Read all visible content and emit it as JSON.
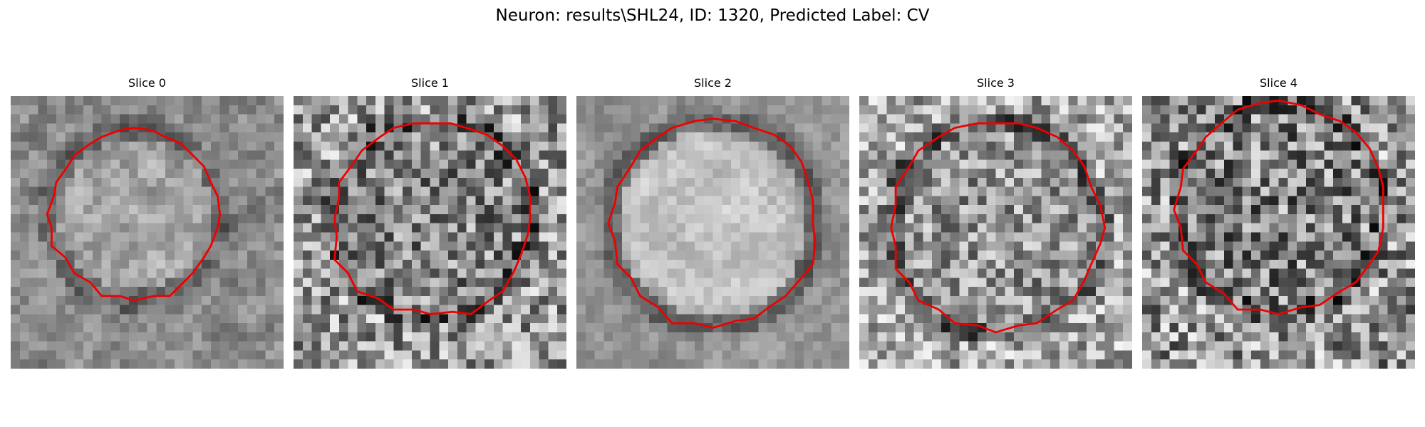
{
  "figure": {
    "title": "Neuron: results\\SHL24, ID: 1320, Predicted Label: CV"
  },
  "colors": {
    "contour": "#ee0000",
    "background": "#ffffff",
    "colormap": "gray"
  },
  "panels": [
    {
      "title": "Slice 0"
    },
    {
      "title": "Slice 1"
    },
    {
      "title": "Slice 2"
    },
    {
      "title": "Slice 3"
    },
    {
      "title": "Slice 4"
    }
  ]
}
